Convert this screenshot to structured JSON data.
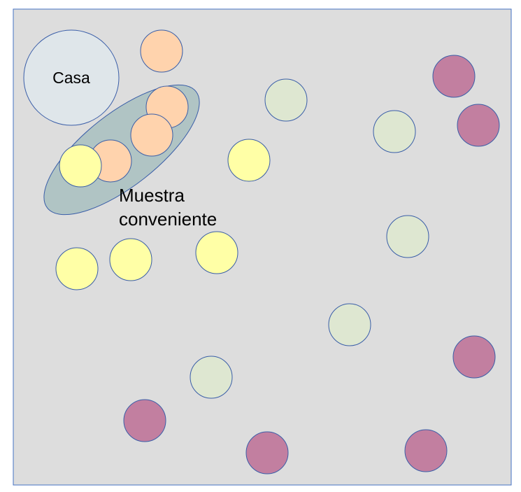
{
  "colors": {
    "background": "#dddddd",
    "border": "#4472c4",
    "outline": "#3a5ea8",
    "home": "#dfe6ea",
    "sample_ellipse": "#b0c4c4",
    "orange": "#ffd3ad",
    "yellow": "#ffffa6",
    "green": "#dee7d1",
    "purple": "#c27fa0"
  },
  "home": {
    "label": "Casa"
  },
  "sample": {
    "label_line1": "Muestra",
    "label_line2": "conveniente"
  },
  "groups": [
    "orange",
    "yellow",
    "green",
    "purple"
  ]
}
